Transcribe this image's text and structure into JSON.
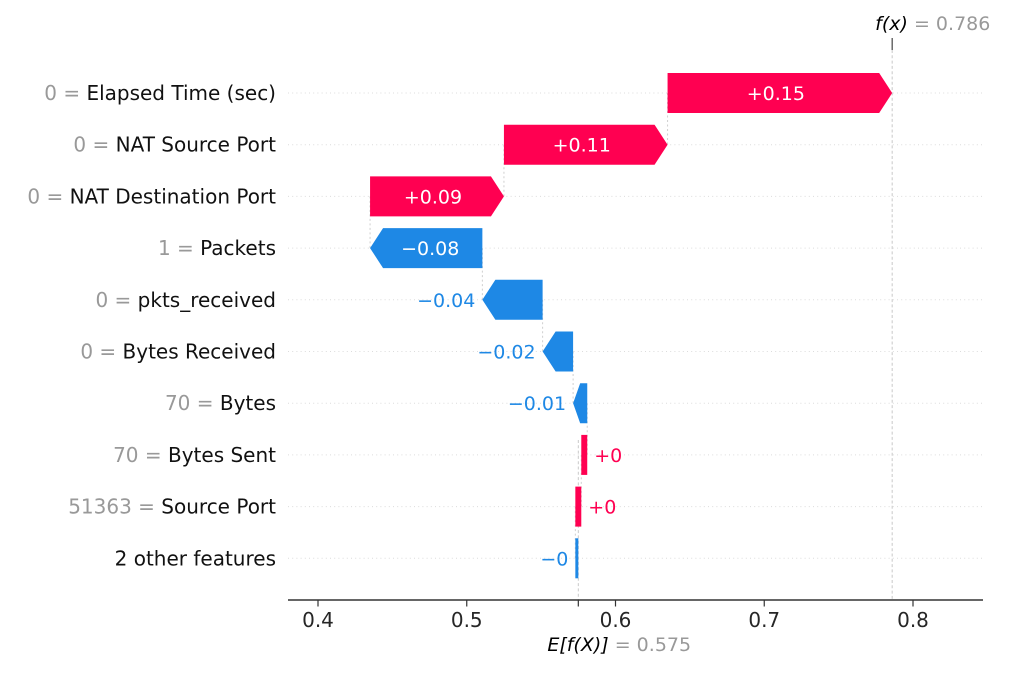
{
  "chart_data": {
    "type": "waterfall",
    "title": "",
    "fx_label": "f(x)",
    "fx_suffix": " = 0.786",
    "fx": 0.786,
    "base_label": "E[f(X)]",
    "base_suffix": " = 0.575",
    "base": 0.575,
    "separator": " = ",
    "x_ticks": [
      0.4,
      0.5,
      0.6,
      0.7,
      0.8
    ],
    "x_range": [
      0.38,
      0.847
    ],
    "colors": {
      "positive": "#ff0051",
      "negative": "#1e88e5",
      "muted_text": "#999999",
      "feature_text": "#111111",
      "tick_text": "#262626",
      "gridline": "#dcdcdc",
      "dashed_line": "#c9c9c9",
      "axis": "#333333"
    },
    "legend_position": "none",
    "grid": "dotted-horizontal",
    "rows": [
      {
        "value": "0",
        "feature": "Elapsed Time (sec)",
        "contribution": 0.15,
        "label": "+0.15",
        "start": 0.635,
        "end": 0.786,
        "direction": "positive",
        "label_placement": "inside"
      },
      {
        "value": "0",
        "feature": "NAT Source Port",
        "contribution": 0.11,
        "label": "+0.11",
        "start": 0.525,
        "end": 0.635,
        "direction": "positive",
        "label_placement": "inside"
      },
      {
        "value": "0",
        "feature": "NAT Destination Port",
        "contribution": 0.09,
        "label": "+0.09",
        "start": 0.435,
        "end": 0.525,
        "direction": "positive",
        "label_placement": "inside"
      },
      {
        "value": "1",
        "feature": "Packets",
        "contribution": -0.08,
        "label": "−0.08",
        "start": 0.435,
        "end": 0.5105,
        "direction": "negative",
        "label_placement": "inside"
      },
      {
        "value": "0",
        "feature": "pkts_received",
        "contribution": -0.04,
        "label": "−0.04",
        "start": 0.5105,
        "end": 0.551,
        "direction": "negative",
        "label_placement": "outside"
      },
      {
        "value": "0",
        "feature": "Bytes Received",
        "contribution": -0.02,
        "label": "−0.02",
        "start": 0.551,
        "end": 0.5715,
        "direction": "negative",
        "label_placement": "outside"
      },
      {
        "value": "70",
        "feature": "Bytes",
        "contribution": -0.01,
        "label": "−0.01",
        "start": 0.5715,
        "end": 0.581,
        "direction": "negative",
        "label_placement": "outside"
      },
      {
        "value": "70",
        "feature": "Bytes Sent",
        "contribution": 0.004,
        "label": "+0",
        "start": 0.577,
        "end": 0.581,
        "direction": "positive",
        "label_placement": "outside"
      },
      {
        "value": "51363",
        "feature": "Source Port",
        "contribution": 0.004,
        "label": "+0",
        "start": 0.573,
        "end": 0.577,
        "direction": "positive",
        "label_placement": "outside"
      },
      {
        "value": null,
        "feature": "2 other features",
        "contribution": -0.002,
        "label": "−0",
        "start": 0.573,
        "end": 0.575,
        "direction": "negative",
        "label_placement": "outside"
      }
    ]
  }
}
